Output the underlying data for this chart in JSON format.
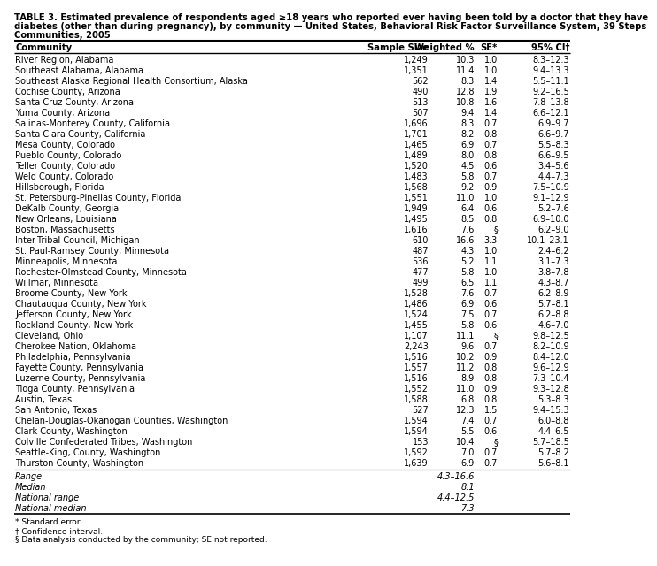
{
  "title_line1": "TABLE 3. Estimated prevalence of respondents aged ≥18 years who reported ever having been told by a doctor that they have",
  "title_line2": "diabetes (other than during pregnancy), by community — United States, Behavioral Risk Factor Surveillance System, 39 Steps",
  "title_line3": "Communities, 2005",
  "columns": [
    "Community",
    "Sample Size",
    "Weighted %",
    "SE*",
    "95% CI†"
  ],
  "rows": [
    [
      "River Region, Alabama",
      "1,249",
      "10.3",
      "1.0",
      "8.3–12.3"
    ],
    [
      "Southeast Alabama, Alabama",
      "1,351",
      "11.4",
      "1.0",
      "9.4–13.3"
    ],
    [
      "Southeast Alaska Regional Health Consortium, Alaska",
      "562",
      "8.3",
      "1.4",
      "5.5–11.1"
    ],
    [
      "Cochise County, Arizona",
      "490",
      "12.8",
      "1.9",
      "9.2–16.5"
    ],
    [
      "Santa Cruz County, Arizona",
      "513",
      "10.8",
      "1.6",
      "7.8–13.8"
    ],
    [
      "Yuma County, Arizona",
      "507",
      "9.4",
      "1.4",
      "6.6–12.1"
    ],
    [
      "Salinas-Monterey County, California",
      "1,696",
      "8.3",
      "0.7",
      "6.9–9.7"
    ],
    [
      "Santa Clara County, California",
      "1,701",
      "8.2",
      "0.8",
      "6.6–9.7"
    ],
    [
      "Mesa County, Colorado",
      "1,465",
      "6.9",
      "0.7",
      "5.5–8.3"
    ],
    [
      "Pueblo County, Colorado",
      "1,489",
      "8.0",
      "0.8",
      "6.6–9.5"
    ],
    [
      "Teller County, Colorado",
      "1,520",
      "4.5",
      "0.6",
      "3.4–5.6"
    ],
    [
      "Weld County, Colorado",
      "1,483",
      "5.8",
      "0.7",
      "4.4–7.3"
    ],
    [
      "Hillsborough, Florida",
      "1,568",
      "9.2",
      "0.9",
      "7.5–10.9"
    ],
    [
      "St. Petersburg-Pinellas County, Florida",
      "1,551",
      "11.0",
      "1.0",
      "9.1–12.9"
    ],
    [
      "DeKalb County, Georgia",
      "1,949",
      "6.4",
      "0.6",
      "5.2–7.6"
    ],
    [
      "New Orleans, Louisiana",
      "1,495",
      "8.5",
      "0.8",
      "6.9–10.0"
    ],
    [
      "Boston, Massachusetts",
      "1,616",
      "7.6",
      "§",
      "6.2–9.0"
    ],
    [
      "Inter-Tribal Council, Michigan",
      "610",
      "16.6",
      "3.3",
      "10.1–23.1"
    ],
    [
      "St. Paul-Ramsey County, Minnesota",
      "487",
      "4.3",
      "1.0",
      "2.4–6.2"
    ],
    [
      "Minneapolis, Minnesota",
      "536",
      "5.2",
      "1.1",
      "3.1–7.3"
    ],
    [
      "Rochester-Olmstead County, Minnesota",
      "477",
      "5.8",
      "1.0",
      "3.8–7.8"
    ],
    [
      "Willmar, Minnesota",
      "499",
      "6.5",
      "1.1",
      "4.3–8.7"
    ],
    [
      "Broome County, New York",
      "1,528",
      "7.6",
      "0.7",
      "6.2–8.9"
    ],
    [
      "Chautauqua County, New York",
      "1,486",
      "6.9",
      "0.6",
      "5.7–8.1"
    ],
    [
      "Jefferson County, New York",
      "1,524",
      "7.5",
      "0.7",
      "6.2–8.8"
    ],
    [
      "Rockland County, New York",
      "1,455",
      "5.8",
      "0.6",
      "4.6–7.0"
    ],
    [
      "Cleveland, Ohio",
      "1,107",
      "11.1",
      "§",
      "9.8–12.5"
    ],
    [
      "Cherokee Nation, Oklahoma",
      "2,243",
      "9.6",
      "0.7",
      "8.2–10.9"
    ],
    [
      "Philadelphia, Pennsylvania",
      "1,516",
      "10.2",
      "0.9",
      "8.4–12.0"
    ],
    [
      "Fayette County, Pennsylvania",
      "1,557",
      "11.2",
      "0.8",
      "9.6–12.9"
    ],
    [
      "Luzerne County, Pennsylvania",
      "1,516",
      "8.9",
      "0.8",
      "7.3–10.4"
    ],
    [
      "Tioga County, Pennsylvania",
      "1,552",
      "11.0",
      "0.9",
      "9.3–12.8"
    ],
    [
      "Austin, Texas",
      "1,588",
      "6.8",
      "0.8",
      "5.3–8.3"
    ],
    [
      "San Antonio, Texas",
      "527",
      "12.3",
      "1.5",
      "9.4–15.3"
    ],
    [
      "Chelan-Douglas-Okanogan Counties, Washington",
      "1,594",
      "7.4",
      "0.7",
      "6.0–8.8"
    ],
    [
      "Clark County, Washington",
      "1,594",
      "5.5",
      "0.6",
      "4.4–6.5"
    ],
    [
      "Colville Confederated Tribes, Washington",
      "153",
      "10.4",
      "§",
      "5.7–18.5"
    ],
    [
      "Seattle-King, County, Washington",
      "1,592",
      "7.0",
      "0.7",
      "5.7–8.2"
    ],
    [
      "Thurston County, Washington",
      "1,639",
      "6.9",
      "0.7",
      "5.6–8.1"
    ]
  ],
  "summary_rows": [
    [
      "Range",
      "",
      "4.3–16.6",
      "",
      ""
    ],
    [
      "Median",
      "",
      "8.1",
      "",
      ""
    ],
    [
      "National range",
      "",
      "4.4–12.5",
      "",
      ""
    ],
    [
      "National median",
      "",
      "7.3",
      "",
      ""
    ]
  ],
  "footnotes": [
    "* Standard error.",
    "† Confidence interval.",
    "§ Data analysis conducted by the community; SE not reported."
  ],
  "font_size": 7.0,
  "title_font_size": 7.2,
  "header_font_size": 7.2
}
